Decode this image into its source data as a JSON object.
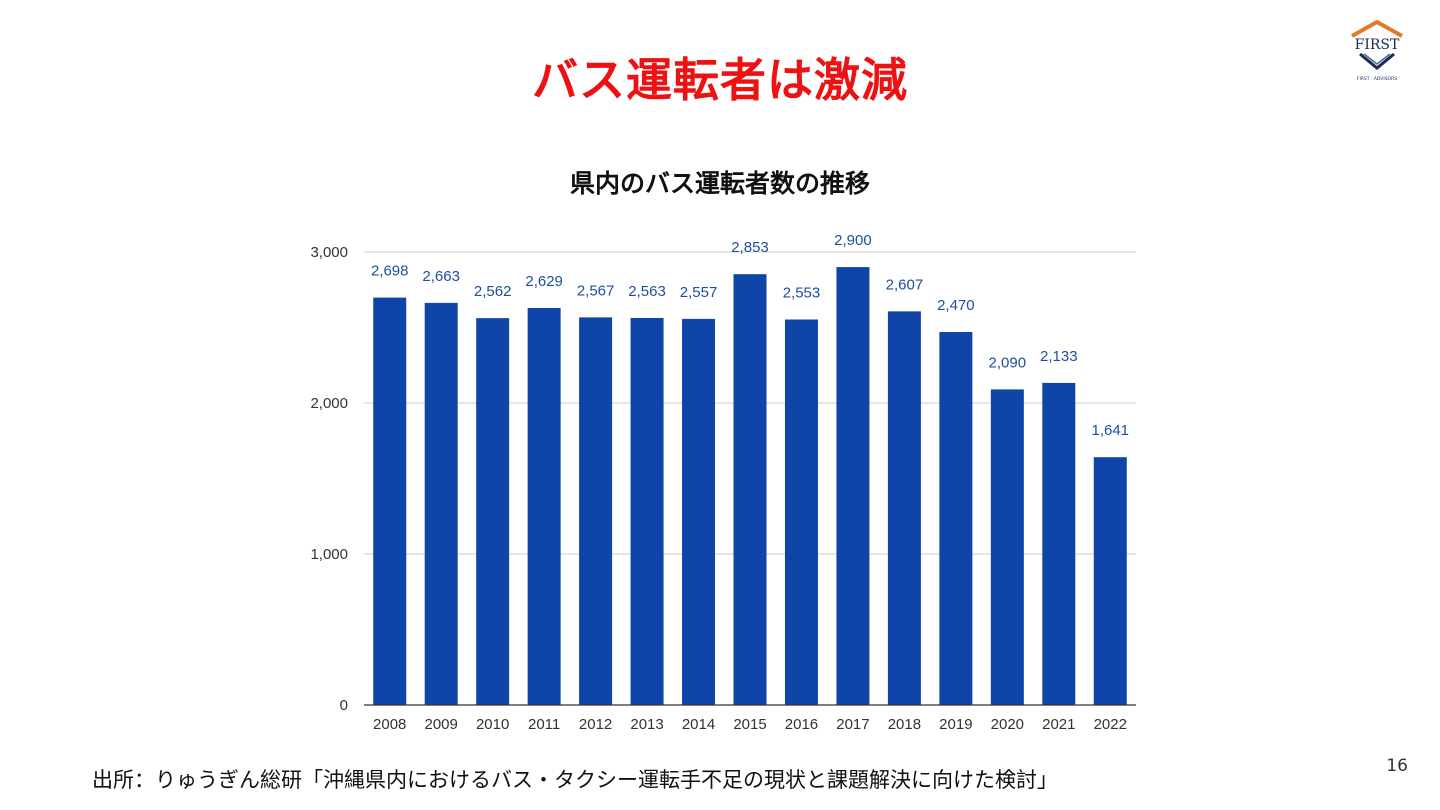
{
  "slide": {
    "title": "バス運転者は激減",
    "page_number": "16",
    "source": "出所：りゅうぎん総研「沖縄県内におけるバス・タクシー運転手不足の現状と課題解決に向けた検討」",
    "title_color": "#ee1111"
  },
  "logo": {
    "text": "FIRST",
    "tagline": "FIRST · ADVISORS",
    "icon": "house-shield-logo",
    "colors": {
      "roof": "#e07b2a",
      "shield": "#1a2a52"
    }
  },
  "chart_data": {
    "type": "bar",
    "title": "県内のバス運転者数の推移",
    "xlabel": "",
    "ylabel": "",
    "categories": [
      "2008",
      "2009",
      "2010",
      "2011",
      "2012",
      "2013",
      "2014",
      "2015",
      "2016",
      "2017",
      "2018",
      "2019",
      "2020",
      "2021",
      "2022"
    ],
    "values": [
      2698,
      2663,
      2562,
      2629,
      2567,
      2563,
      2557,
      2853,
      2553,
      2900,
      2607,
      2470,
      2090,
      2133,
      1641
    ],
    "value_labels": [
      "2,698",
      "2,663",
      "2,562",
      "2,629",
      "2,567",
      "2,563",
      "2,557",
      "2,853",
      "2,553",
      "2,900",
      "2,607",
      "2,470",
      "2,090",
      "2,133",
      "1,641"
    ],
    "ylim": [
      0,
      3000
    ],
    "yticks": [
      0,
      1000,
      2000,
      3000
    ],
    "ytick_labels": [
      "0",
      "1,000",
      "2,000",
      "3,000"
    ],
    "grid": true,
    "legend": "none",
    "bar_color": "#0f44a8",
    "label_color": "#1f4e9c"
  }
}
